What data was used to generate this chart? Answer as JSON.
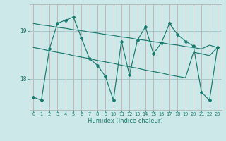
{
  "xlabel": "Humidex (Indice chaleur)",
  "bg_color": "#cce8e8",
  "line_color": "#1a7a6e",
  "grid_v_color": "#c4a0a0",
  "grid_h_color": "#a8c8c8",
  "x_values": [
    0,
    1,
    2,
    3,
    4,
    5,
    6,
    7,
    8,
    9,
    10,
    11,
    12,
    13,
    14,
    15,
    16,
    17,
    18,
    19,
    20,
    21,
    22,
    23
  ],
  "y_main": [
    17.62,
    17.55,
    18.62,
    19.15,
    19.22,
    19.28,
    18.85,
    18.42,
    18.28,
    18.05,
    17.55,
    18.78,
    18.08,
    18.8,
    19.08,
    18.52,
    18.75,
    19.15,
    18.92,
    18.78,
    18.68,
    17.72,
    17.55,
    18.65
  ],
  "y_upper": [
    19.15,
    19.12,
    19.1,
    19.07,
    19.05,
    19.02,
    19.0,
    18.97,
    18.95,
    18.92,
    18.9,
    18.87,
    18.85,
    18.82,
    18.8,
    18.77,
    18.75,
    18.72,
    18.7,
    18.67,
    18.65,
    18.62,
    18.7,
    18.65
  ],
  "y_lower": [
    18.65,
    18.62,
    18.58,
    18.55,
    18.52,
    18.48,
    18.45,
    18.42,
    18.38,
    18.35,
    18.32,
    18.28,
    18.25,
    18.22,
    18.18,
    18.15,
    18.12,
    18.08,
    18.05,
    18.02,
    18.55,
    18.52,
    18.48,
    18.65
  ],
  "ylim": [
    17.35,
    19.55
  ],
  "yticks": [
    18,
    19
  ],
  "xlim": [
    -0.5,
    23.5
  ],
  "xticks": [
    0,
    1,
    2,
    3,
    4,
    5,
    6,
    7,
    8,
    9,
    10,
    11,
    12,
    13,
    14,
    15,
    16,
    17,
    18,
    19,
    20,
    21,
    22,
    23
  ]
}
